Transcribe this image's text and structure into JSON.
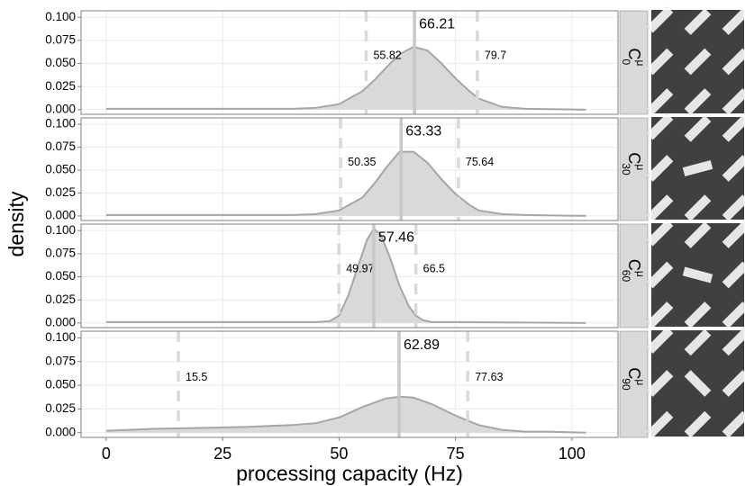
{
  "chart_data": [
    {
      "type": "area",
      "ylabel": "density",
      "facet": {
        "base": "C",
        "sup": "μ",
        "sub": "0"
      },
      "x": [
        0,
        20,
        40,
        45,
        50,
        55,
        58,
        60,
        63,
        66,
        69,
        72,
        75,
        78,
        80,
        85,
        90,
        103
      ],
      "values": [
        0.001,
        0.001,
        0.001,
        0.002,
        0.006,
        0.02,
        0.034,
        0.045,
        0.06,
        0.068,
        0.064,
        0.05,
        0.034,
        0.02,
        0.012,
        0.003,
        0.001,
        0
      ],
      "median": 66.21,
      "lower": 55.82,
      "upper": 79.7,
      "xlim": [
        -5.4,
        109.9
      ],
      "ylim": [
        -0.005,
        0.107
      ],
      "yticks": [
        {
          "value": 0,
          "label": "0.000"
        },
        {
          "value": 0.025,
          "label": "0.025"
        },
        {
          "value": 0.05,
          "label": "0.050"
        },
        {
          "value": 0.075,
          "label": "0.075"
        },
        {
          "value": 0.1,
          "label": "0.100"
        }
      ],
      "grid": true,
      "color": "#d9d9d9",
      "line_color": "#a6a6a6"
    },
    {
      "type": "area",
      "facet": {
        "base": "C",
        "sup": "μ",
        "sub": "30"
      },
      "x": [
        0,
        20,
        40,
        45,
        50,
        55,
        58,
        60,
        63,
        66,
        69,
        72,
        75,
        78,
        80,
        85,
        90,
        103
      ],
      "values": [
        0.001,
        0.001,
        0.001,
        0.002,
        0.006,
        0.02,
        0.038,
        0.052,
        0.07,
        0.07,
        0.058,
        0.04,
        0.024,
        0.012,
        0.006,
        0.002,
        0.001,
        0
      ],
      "median": 63.33,
      "lower": 50.35,
      "upper": 75.64,
      "xlim": [
        -5.4,
        109.9
      ],
      "ylim": [
        -0.005,
        0.107
      ],
      "yticks": [
        {
          "value": 0,
          "label": "0.000"
        },
        {
          "value": 0.025,
          "label": "0.025"
        },
        {
          "value": 0.05,
          "label": "0.050"
        },
        {
          "value": 0.075,
          "label": "0.075"
        },
        {
          "value": 0.1,
          "label": "0.100"
        }
      ],
      "grid": true,
      "color": "#d9d9d9",
      "line_color": "#a6a6a6"
    },
    {
      "type": "area",
      "facet": {
        "base": "C",
        "sup": "μ",
        "sub": "60"
      },
      "x": [
        0,
        20,
        40,
        45,
        48,
        50,
        52,
        54,
        56,
        57.5,
        59,
        61,
        63,
        65,
        66.5,
        68,
        70,
        75,
        103
      ],
      "values": [
        0.001,
        0.001,
        0.001,
        0.001,
        0.002,
        0.008,
        0.03,
        0.06,
        0.09,
        0.102,
        0.095,
        0.07,
        0.04,
        0.018,
        0.008,
        0.003,
        0.001,
        0.001,
        0
      ],
      "median": 57.46,
      "lower": 49.97,
      "upper": 66.5,
      "xlim": [
        -5.4,
        109.9
      ],
      "ylim": [
        -0.005,
        0.107
      ],
      "yticks": [
        {
          "value": 0,
          "label": "0.000"
        },
        {
          "value": 0.025,
          "label": "0.025"
        },
        {
          "value": 0.05,
          "label": "0.050"
        },
        {
          "value": 0.075,
          "label": "0.075"
        },
        {
          "value": 0.1,
          "label": "0.100"
        }
      ],
      "grid": true,
      "color": "#d9d9d9",
      "line_color": "#a6a6a6"
    },
    {
      "type": "area",
      "xlabel": "processing capacity (Hz)",
      "facet": {
        "base": "C",
        "sup": "μ",
        "sub": "90"
      },
      "x": [
        0,
        10,
        20,
        30,
        40,
        45,
        50,
        55,
        60,
        63,
        66,
        70,
        75,
        80,
        85,
        90,
        95,
        103
      ],
      "values": [
        0.002,
        0.004,
        0.005,
        0.006,
        0.008,
        0.01,
        0.016,
        0.027,
        0.036,
        0.038,
        0.037,
        0.03,
        0.018,
        0.008,
        0.003,
        0.001,
        0.001,
        0
      ],
      "median": 62.89,
      "lower": 15.5,
      "upper": 77.63,
      "xlim": [
        -5.4,
        109.9
      ],
      "ylim": [
        -0.005,
        0.107
      ],
      "xticks": [
        0,
        25,
        50,
        75,
        100
      ],
      "yticks": [
        {
          "value": 0,
          "label": "0.000"
        },
        {
          "value": 0.025,
          "label": "0.025"
        },
        {
          "value": 0.05,
          "label": "0.050"
        },
        {
          "value": 0.075,
          "label": "0.075"
        },
        {
          "value": 0.1,
          "label": "0.100"
        }
      ],
      "grid": true,
      "color": "#d9d9d9",
      "line_color": "#a6a6a6"
    }
  ]
}
